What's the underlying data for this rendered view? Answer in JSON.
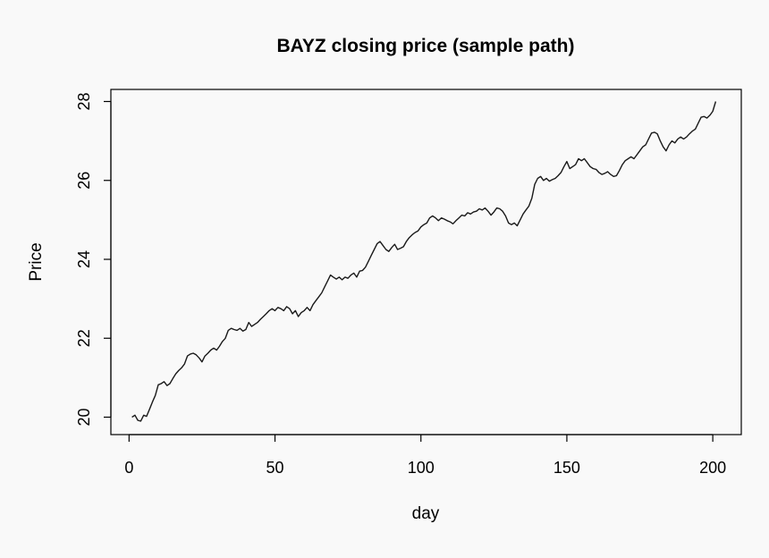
{
  "chart_data": {
    "type": "line",
    "title": "BAYZ closing price (sample path)",
    "xlabel": "day",
    "ylabel": "Price",
    "xlim": [
      1,
      201
    ],
    "ylim": [
      19.6,
      28.3
    ],
    "x_ticks": [
      0,
      50,
      100,
      150,
      200
    ],
    "y_ticks": [
      20,
      22,
      24,
      26,
      28
    ],
    "grid": false,
    "legend": "none",
    "line_color": "#1a1a1a",
    "series": [
      {
        "x_start": 1,
        "x_step": 1,
        "values": [
          20.0,
          20.05,
          19.92,
          19.9,
          20.05,
          20.02,
          20.2,
          20.38,
          20.55,
          20.82,
          20.85,
          20.9,
          20.8,
          20.85,
          20.98,
          21.1,
          21.18,
          21.25,
          21.35,
          21.55,
          21.6,
          21.62,
          21.58,
          21.5,
          21.4,
          21.55,
          21.62,
          21.7,
          21.75,
          21.7,
          21.8,
          21.92,
          22.0,
          22.2,
          22.25,
          22.22,
          22.2,
          22.25,
          22.18,
          22.22,
          22.4,
          22.3,
          22.35,
          22.4,
          22.48,
          22.55,
          22.62,
          22.7,
          22.75,
          22.7,
          22.78,
          22.75,
          22.7,
          22.8,
          22.75,
          22.62,
          22.7,
          22.55,
          22.65,
          22.7,
          22.78,
          22.7,
          22.85,
          22.95,
          23.05,
          23.15,
          23.3,
          23.45,
          23.6,
          23.55,
          23.5,
          23.55,
          23.48,
          23.55,
          23.52,
          23.6,
          23.65,
          23.55,
          23.7,
          23.72,
          23.8,
          23.95,
          24.1,
          24.25,
          24.4,
          24.45,
          24.35,
          24.25,
          24.2,
          24.3,
          24.38,
          24.25,
          24.28,
          24.32,
          24.45,
          24.55,
          24.62,
          24.68,
          24.72,
          24.82,
          24.88,
          24.92,
          25.05,
          25.1,
          25.05,
          24.98,
          25.05,
          25.02,
          24.98,
          24.95,
          24.9,
          24.98,
          25.05,
          25.12,
          25.1,
          25.18,
          25.15,
          25.2,
          25.22,
          25.28,
          25.25,
          25.3,
          25.22,
          25.12,
          25.2,
          25.3,
          25.28,
          25.22,
          25.1,
          24.92,
          24.88,
          24.92,
          24.85,
          25.0,
          25.15,
          25.25,
          25.35,
          25.55,
          25.9,
          26.05,
          26.1,
          26.0,
          26.05,
          25.98,
          26.02,
          26.05,
          26.12,
          26.2,
          26.35,
          26.48,
          26.3,
          26.35,
          26.4,
          26.55,
          26.5,
          26.55,
          26.45,
          26.35,
          26.3,
          26.28,
          26.2,
          26.15,
          26.18,
          26.22,
          26.15,
          26.1,
          26.12,
          26.25,
          26.4,
          26.5,
          26.55,
          26.6,
          26.55,
          26.65,
          26.75,
          26.85,
          26.9,
          27.05,
          27.2,
          27.22,
          27.18,
          27.0,
          26.85,
          26.75,
          26.9,
          27.0,
          26.95,
          27.05,
          27.1,
          27.05,
          27.1,
          27.18,
          27.25,
          27.3,
          27.45,
          27.6,
          27.62,
          27.58,
          27.65,
          27.75,
          28.0
        ]
      }
    ]
  }
}
